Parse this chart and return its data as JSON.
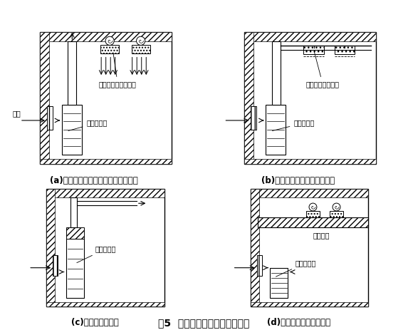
{
  "title": "图5  分散式净化空调系统的示例",
  "title_fontsize": 10,
  "sub_titles": [
    "(a)柜式空调器与高效过滤器风机机组",
    "(b)柜式空调器与高效过滤风口",
    "(c)柜式净化空调器",
    "(d)柜式空调器与洁净小室"
  ],
  "sub_title_fontsize": 8.5,
  "label_fontsize": 7,
  "bg_color": "#ffffff",
  "hatch_pattern": "////",
  "wall_hatch": "////"
}
